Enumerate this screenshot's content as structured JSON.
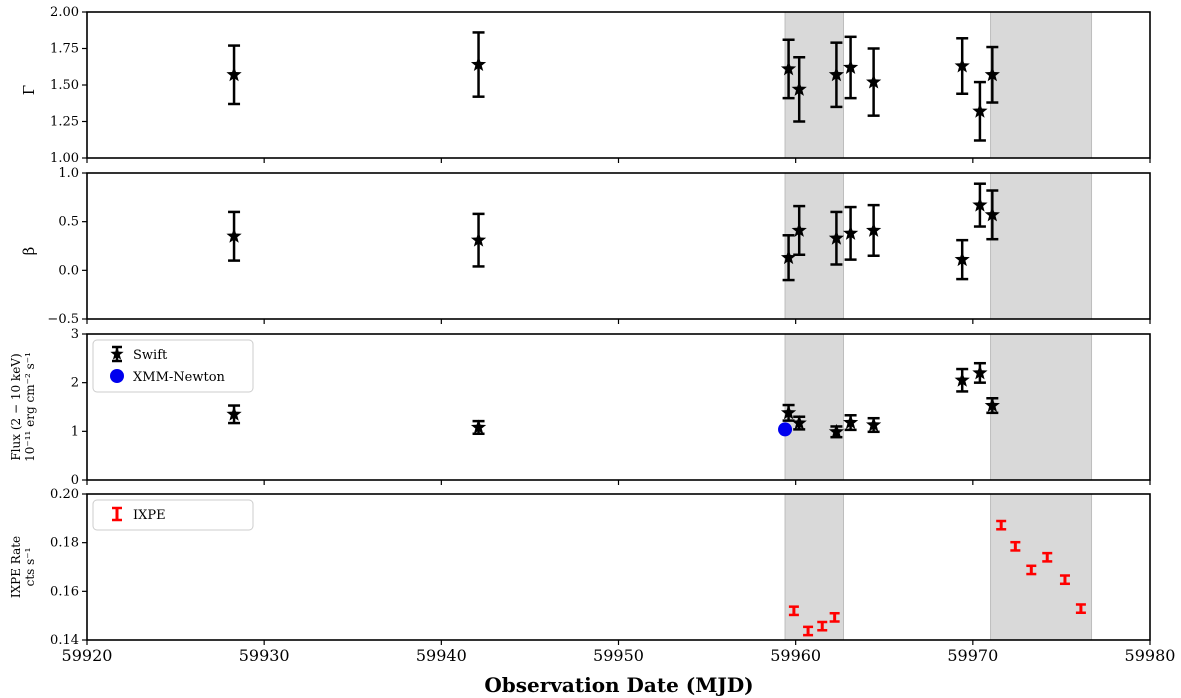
{
  "chart_data": {
    "type": "scatter",
    "shared_x": {
      "label": "Observation Date (MJD)",
      "lim": [
        59920,
        59980
      ],
      "ticks": [
        59920,
        59930,
        59940,
        59950,
        59960,
        59970,
        59980
      ],
      "tick_labels": [
        "59920",
        "59930",
        "59940",
        "59950",
        "59960",
        "59970",
        "59980"
      ]
    },
    "shaded_regions": [
      [
        59959.4,
        59962.7
      ],
      [
        59971.0,
        59976.7
      ]
    ],
    "shade_color": "#d9d9d9",
    "panels": [
      {
        "id": "gamma",
        "ylabel": "Γ",
        "ylim": [
          1.0,
          2.0
        ],
        "yticks": [
          1.0,
          1.25,
          1.5,
          1.75,
          2.0
        ],
        "ytick_labels": [
          "1.00",
          "1.25",
          "1.50",
          "1.75",
          "2.00"
        ],
        "legend": [],
        "series": [
          {
            "name": "",
            "marker": "star",
            "color": "#000000",
            "points": [
              {
                "x": 59928.3,
                "y": 1.57,
                "err": 0.2
              },
              {
                "x": 59942.1,
                "y": 1.64,
                "err": 0.22
              },
              {
                "x": 59959.6,
                "y": 1.61,
                "err": 0.2
              },
              {
                "x": 59960.2,
                "y": 1.47,
                "err": 0.22
              },
              {
                "x": 59962.3,
                "y": 1.57,
                "err": 0.22
              },
              {
                "x": 59963.1,
                "y": 1.62,
                "err": 0.21
              },
              {
                "x": 59964.4,
                "y": 1.52,
                "err": 0.23
              },
              {
                "x": 59969.4,
                "y": 1.63,
                "err": 0.19
              },
              {
                "x": 59970.4,
                "y": 1.32,
                "err": 0.2
              },
              {
                "x": 59971.1,
                "y": 1.57,
                "err": 0.19
              }
            ]
          }
        ]
      },
      {
        "id": "beta",
        "ylabel": "β",
        "ylim": [
          -0.5,
          1.0
        ],
        "yticks": [
          -0.5,
          0.0,
          0.5,
          1.0
        ],
        "ytick_labels": [
          "−0.5",
          "0.0",
          "0.5",
          "1.0"
        ],
        "legend": [],
        "series": [
          {
            "name": "",
            "marker": "star",
            "color": "#000000",
            "points": [
              {
                "x": 59928.3,
                "y": 0.35,
                "err": 0.25
              },
              {
                "x": 59942.1,
                "y": 0.31,
                "err": 0.27
              },
              {
                "x": 59959.6,
                "y": 0.13,
                "err": 0.23
              },
              {
                "x": 59960.2,
                "y": 0.41,
                "err": 0.25
              },
              {
                "x": 59962.3,
                "y": 0.33,
                "err": 0.27
              },
              {
                "x": 59963.1,
                "y": 0.38,
                "err": 0.27
              },
              {
                "x": 59964.4,
                "y": 0.41,
                "err": 0.26
              },
              {
                "x": 59969.4,
                "y": 0.11,
                "err": 0.2
              },
              {
                "x": 59970.4,
                "y": 0.67,
                "err": 0.22
              },
              {
                "x": 59971.1,
                "y": 0.57,
                "err": 0.25
              }
            ]
          }
        ]
      },
      {
        "id": "flux",
        "ylabel": [
          "Flux (2 − 10 keV)",
          "10⁻¹¹ erg cm⁻² s⁻¹"
        ],
        "ylim": [
          0,
          3
        ],
        "yticks": [
          0,
          1,
          2,
          3
        ],
        "ytick_labels": [
          "0",
          "1",
          "2",
          "3"
        ],
        "legend": [
          {
            "label": "Swift",
            "marker": "star",
            "color": "#000000"
          },
          {
            "label": "XMM-Newton",
            "marker": "circle",
            "color": "#0000ee"
          }
        ],
        "series": [
          {
            "name": "Swift",
            "marker": "star",
            "color": "#000000",
            "points": [
              {
                "x": 59928.3,
                "y": 1.35,
                "err": 0.18
              },
              {
                "x": 59942.1,
                "y": 1.08,
                "err": 0.13
              },
              {
                "x": 59959.6,
                "y": 1.38,
                "err": 0.16
              },
              {
                "x": 59960.2,
                "y": 1.17,
                "err": 0.13
              },
              {
                "x": 59962.3,
                "y": 0.99,
                "err": 0.11
              },
              {
                "x": 59963.1,
                "y": 1.18,
                "err": 0.15
              },
              {
                "x": 59964.4,
                "y": 1.13,
                "err": 0.14
              },
              {
                "x": 59969.4,
                "y": 2.05,
                "err": 0.23
              },
              {
                "x": 59970.4,
                "y": 2.2,
                "err": 0.2
              },
              {
                "x": 59971.1,
                "y": 1.53,
                "err": 0.15
              }
            ]
          },
          {
            "name": "XMM-Newton",
            "marker": "circle",
            "color": "#0000ee",
            "points": [
              {
                "x": 59959.4,
                "y": 1.04,
                "err": 0
              }
            ]
          }
        ]
      },
      {
        "id": "ixpe",
        "ylabel": [
          "IXPE Rate",
          "cts s⁻¹"
        ],
        "ylim": [
          0.14,
          0.2
        ],
        "yticks": [
          0.14,
          0.16,
          0.18,
          0.2
        ],
        "ytick_labels": [
          "0.14",
          "0.16",
          "0.18",
          "0.20"
        ],
        "legend": [
          {
            "label": "IXPE",
            "marker": "errorbar",
            "color": "#ff0000"
          }
        ],
        "series": [
          {
            "name": "IXPE",
            "marker": "errorbar",
            "color": "#ff0000",
            "points": [
              {
                "x": 59959.9,
                "y": 0.152,
                "err": 0.0017
              },
              {
                "x": 59960.7,
                "y": 0.1437,
                "err": 0.0017
              },
              {
                "x": 59961.5,
                "y": 0.1457,
                "err": 0.0017
              },
              {
                "x": 59962.2,
                "y": 0.1493,
                "err": 0.0017
              },
              {
                "x": 59971.6,
                "y": 0.1872,
                "err": 0.0017
              },
              {
                "x": 59972.4,
                "y": 0.1785,
                "err": 0.0017
              },
              {
                "x": 59973.3,
                "y": 0.1688,
                "err": 0.0017
              },
              {
                "x": 59974.2,
                "y": 0.174,
                "err": 0.0017
              },
              {
                "x": 59975.2,
                "y": 0.1648,
                "err": 0.0017
              },
              {
                "x": 59976.1,
                "y": 0.1529,
                "err": 0.0017
              }
            ]
          }
        ]
      }
    ]
  }
}
